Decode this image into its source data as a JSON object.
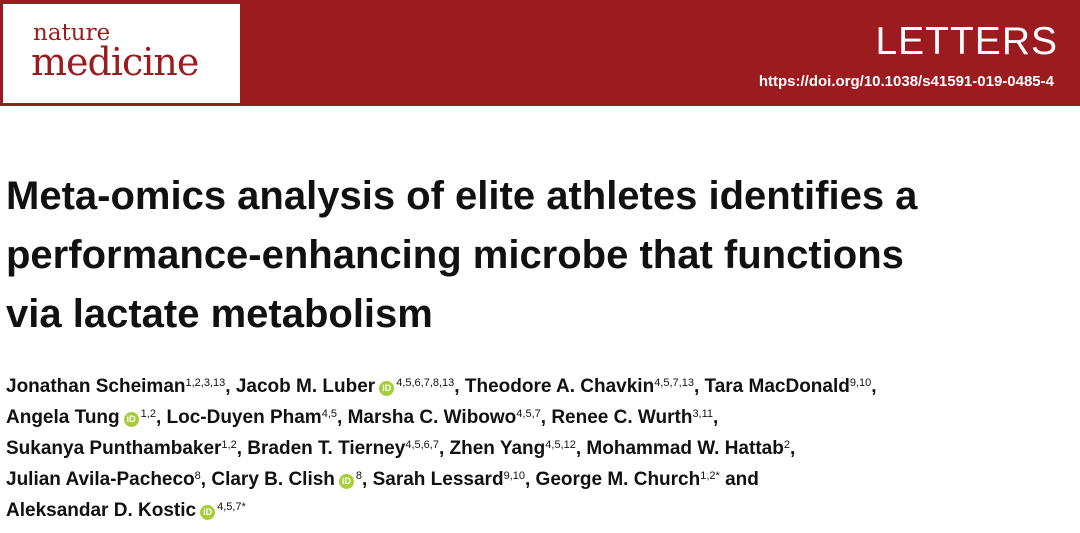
{
  "header": {
    "logo_top": "nature",
    "logo_bottom": "medicine",
    "section_label": "LETTERS",
    "doi": "https://doi.org/10.1038/s41591-019-0485-4"
  },
  "article": {
    "title_lines": [
      "Meta-omics analysis of elite athletes identifies a",
      "performance-enhancing microbe that functions",
      "via lactate metabolism"
    ]
  },
  "orcid_icon_label": "iD",
  "authors": [
    {
      "name": "Jonathan Scheiman",
      "orcid": false,
      "aff": "1,2,3,13",
      "after": ", "
    },
    {
      "name": "Jacob M. Luber",
      "orcid": true,
      "aff": "4,5,6,7,8,13",
      "after": ", "
    },
    {
      "name": "Theodore A. Chavkin",
      "orcid": false,
      "aff": "4,5,7,13",
      "after": ", "
    },
    {
      "name": "Tara MacDonald",
      "orcid": false,
      "aff": "9,10",
      "after": ","
    },
    {
      "name": "Angela Tung",
      "orcid": true,
      "aff": "1,2",
      "after": ", "
    },
    {
      "name": "Loc-Duyen Pham",
      "orcid": false,
      "aff": "4,5",
      "after": ", "
    },
    {
      "name": "Marsha C. Wibowo",
      "orcid": false,
      "aff": "4,5,7",
      "after": ", "
    },
    {
      "name": "Renee C. Wurth",
      "orcid": false,
      "aff": "3,11",
      "after": ","
    },
    {
      "name": "Sukanya Punthambaker",
      "orcid": false,
      "aff": "1,2",
      "after": ", "
    },
    {
      "name": "Braden T. Tierney",
      "orcid": false,
      "aff": "4,5,6,7",
      "after": ", "
    },
    {
      "name": "Zhen Yang",
      "orcid": false,
      "aff": "4,5,12",
      "after": ", "
    },
    {
      "name": "Mohammad W. Hattab",
      "orcid": false,
      "aff": "2",
      "after": ","
    },
    {
      "name": "Julian Avila-Pacheco",
      "orcid": false,
      "aff": "8",
      "after": ", "
    },
    {
      "name": "Clary B. Clish",
      "orcid": true,
      "aff": "8",
      "after": ", "
    },
    {
      "name": "Sarah Lessard",
      "orcid": false,
      "aff": "9,10",
      "after": ", "
    },
    {
      "name": "George M. Church",
      "orcid": false,
      "aff": "1,2*",
      "after": " and"
    },
    {
      "name": "Aleksandar D. Kostic",
      "orcid": true,
      "aff": "4,5,7*",
      "after": ""
    }
  ],
  "author_line_breaks_after": [
    3,
    7,
    11,
    15
  ]
}
